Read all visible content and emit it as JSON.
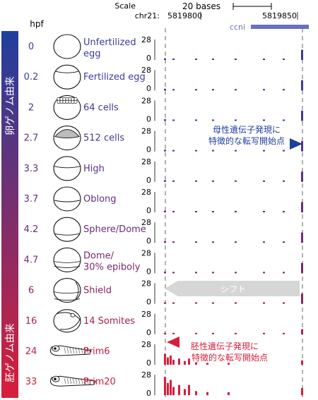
{
  "header": {
    "scale_label": "Scale",
    "chr_label": "chr21:",
    "scale_value": "20 bases",
    "pos_left": "5819800",
    "pos_right": "5819850",
    "gene": "ccni",
    "hpf_label": "hpf"
  },
  "side_bars": {
    "top_label": "卵ゲノム由来",
    "bottom_label": "胚ゲノム由来",
    "top_color": "#1f3f9f",
    "bottom_color": "#d81e3a"
  },
  "stages": [
    {
      "hpf": "0",
      "label": "Unfertilized",
      "label2": "egg",
      "color": "#3b3b9f"
    },
    {
      "hpf": "0.2",
      "label": "Fertilized egg",
      "label2": "",
      "color": "#3e3b9c"
    },
    {
      "hpf": "2",
      "label": "64 cells",
      "label2": "",
      "color": "#453897"
    },
    {
      "hpf": "2.7",
      "label": "512 cells",
      "label2": "",
      "color": "#4c3592"
    },
    {
      "hpf": "3.3",
      "label": "High",
      "label2": "",
      "color": "#57318a"
    },
    {
      "hpf": "3.7",
      "label": "Oblong",
      "label2": "",
      "color": "#612d82"
    },
    {
      "hpf": "4.2",
      "label": "Sphere/Dome",
      "label2": "",
      "color": "#6e2a78"
    },
    {
      "hpf": "4.7",
      "label": "Dome/",
      "label2": "30% epiboly",
      "color": "#7a276d"
    },
    {
      "hpf": "6",
      "label": "Shield",
      "label2": "",
      "color": "#8a2461"
    },
    {
      "hpf": "16",
      "label": "14 Somites",
      "label2": "",
      "color": "#a52150"
    },
    {
      "hpf": "24",
      "label": "Prim6",
      "label2": "",
      "color": "#bf1e43"
    },
    {
      "hpf": "33",
      "label": "Prim20",
      "label2": "",
      "color": "#d41c3a"
    }
  ],
  "tracks": {
    "max_label": "28",
    "zero_label": "0"
  },
  "annotations": {
    "maternal_line1": "母性遺伝子発現に",
    "maternal_line2": "特徴的な転写開始点",
    "shift": "シフト",
    "zygotic_line1": "胚性遺伝子発現に",
    "zygotic_line2": "特徴的な転写開始点"
  },
  "colors": {
    "maternal": "#1f3f9f",
    "zygotic": "#d81e3a",
    "shift_arrow": "#d6d6d6",
    "gene_bar": "#6a6fc5"
  }
}
